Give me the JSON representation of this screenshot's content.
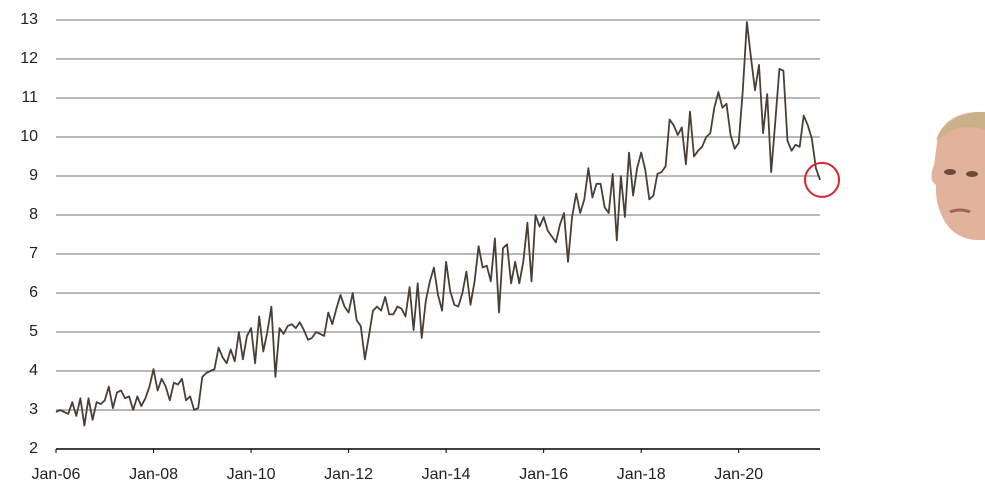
{
  "chart_data": {
    "type": "line",
    "x": [
      "2006-01",
      "2006-02",
      "2006-03",
      "2006-04",
      "2006-05",
      "2006-06",
      "2006-07",
      "2006-08",
      "2006-09",
      "2006-10",
      "2006-11",
      "2006-12",
      "2007-01",
      "2007-02",
      "2007-03",
      "2007-04",
      "2007-05",
      "2007-06",
      "2007-07",
      "2007-08",
      "2007-09",
      "2007-10",
      "2007-11",
      "2007-12",
      "2008-01",
      "2008-02",
      "2008-03",
      "2008-04",
      "2008-05",
      "2008-06",
      "2008-07",
      "2008-08",
      "2008-09",
      "2008-10",
      "2008-11",
      "2008-12",
      "2009-01",
      "2009-02",
      "2009-03",
      "2009-04",
      "2009-05",
      "2009-06",
      "2009-07",
      "2009-08",
      "2009-09",
      "2009-10",
      "2009-11",
      "2009-12",
      "2010-01",
      "2010-02",
      "2010-03",
      "2010-04",
      "2010-05",
      "2010-06",
      "2010-07",
      "2010-08",
      "2010-09",
      "2010-10",
      "2010-11",
      "2010-12",
      "2011-01",
      "2011-02",
      "2011-03",
      "2011-04",
      "2011-05",
      "2011-06",
      "2011-07",
      "2011-08",
      "2011-09",
      "2011-10",
      "2011-11",
      "2011-12",
      "2012-01",
      "2012-02",
      "2012-03",
      "2012-04",
      "2012-05",
      "2012-06",
      "2012-07",
      "2012-08",
      "2012-09",
      "2012-10",
      "2012-11",
      "2012-12",
      "2013-01",
      "2013-02",
      "2013-03",
      "2013-04",
      "2013-05",
      "2013-06",
      "2013-07",
      "2013-08",
      "2013-09",
      "2013-10",
      "2013-11",
      "2013-12",
      "2014-01",
      "2014-02",
      "2014-03",
      "2014-04",
      "2014-05",
      "2014-06",
      "2014-07",
      "2014-08",
      "2014-09",
      "2014-10",
      "2014-11",
      "2014-12",
      "2015-01",
      "2015-02",
      "2015-03",
      "2015-04",
      "2015-05",
      "2015-06",
      "2015-07",
      "2015-08",
      "2015-09",
      "2015-10",
      "2015-11",
      "2015-12",
      "2016-01",
      "2016-02",
      "2016-03",
      "2016-04",
      "2016-05",
      "2016-06",
      "2016-07",
      "2016-08",
      "2016-09",
      "2016-10",
      "2016-11",
      "2016-12",
      "2017-01",
      "2017-02",
      "2017-03",
      "2017-04",
      "2017-05",
      "2017-06",
      "2017-07",
      "2017-08",
      "2017-09",
      "2017-10",
      "2017-11",
      "2017-12",
      "2018-01",
      "2018-02",
      "2018-03",
      "2018-04",
      "2018-05",
      "2018-06",
      "2018-07",
      "2018-08",
      "2018-09",
      "2018-10",
      "2018-11",
      "2018-12",
      "2019-01",
      "2019-02",
      "2019-03",
      "2019-04",
      "2019-05",
      "2019-06",
      "2019-07",
      "2019-08",
      "2019-09",
      "2019-10",
      "2019-11",
      "2019-12",
      "2020-01",
      "2020-02",
      "2020-03",
      "2020-04",
      "2020-05",
      "2020-06",
      "2020-07",
      "2020-08",
      "2020-09",
      "2020-10",
      "2020-11",
      "2020-12",
      "2021-01",
      "2021-02",
      "2021-03",
      "2021-04",
      "2021-05",
      "2021-06",
      "2021-07",
      "2021-08",
      "2021-09"
    ],
    "series": [
      {
        "color": "#4a3f35",
        "values": [
          2.95,
          3.0,
          2.95,
          2.9,
          3.2,
          2.85,
          3.3,
          2.6,
          3.3,
          2.75,
          3.2,
          3.15,
          3.25,
          3.6,
          3.05,
          3.45,
          3.5,
          3.3,
          3.35,
          3.0,
          3.35,
          3.1,
          3.3,
          3.6,
          4.05,
          3.5,
          3.8,
          3.6,
          3.25,
          3.7,
          3.65,
          3.8,
          3.25,
          3.35,
          3.0,
          3.05,
          3.85,
          3.95,
          4.0,
          4.05,
          4.6,
          4.35,
          4.2,
          4.55,
          4.25,
          5.0,
          4.3,
          4.9,
          5.1,
          4.2,
          5.4,
          4.5,
          5.0,
          5.65,
          3.85,
          5.1,
          4.95,
          5.15,
          5.2,
          5.1,
          5.25,
          5.05,
          4.8,
          4.85,
          5.0,
          4.95,
          4.9,
          5.5,
          5.2,
          5.6,
          5.95,
          5.65,
          5.5,
          6.0,
          5.3,
          5.15,
          4.3,
          4.9,
          5.55,
          5.65,
          5.55,
          5.9,
          5.45,
          5.45,
          5.65,
          5.6,
          5.4,
          6.15,
          5.05,
          6.25,
          4.85,
          5.8,
          6.3,
          6.65,
          5.95,
          5.55,
          6.8,
          6.05,
          5.7,
          5.65,
          6.0,
          6.55,
          5.7,
          6.3,
          7.2,
          6.65,
          6.7,
          6.3,
          7.4,
          5.5,
          7.15,
          7.25,
          6.25,
          6.8,
          6.25,
          6.8,
          7.8,
          6.3,
          8.0,
          7.7,
          7.95,
          7.6,
          7.45,
          7.3,
          7.75,
          8.05,
          6.8,
          7.95,
          8.55,
          8.05,
          8.4,
          9.2,
          8.45,
          8.8,
          8.8,
          8.2,
          8.05,
          9.05,
          7.35,
          9.0,
          7.95,
          9.6,
          8.5,
          9.2,
          9.6,
          9.15,
          8.4,
          8.5,
          9.05,
          9.1,
          9.25,
          10.45,
          10.3,
          10.05,
          10.25,
          9.3,
          10.65,
          9.5,
          9.65,
          9.75,
          10.0,
          10.1,
          10.75,
          11.15,
          10.75,
          10.85,
          10.05,
          9.7,
          9.85,
          11.2,
          12.95,
          12.05,
          11.2,
          11.85,
          10.1,
          11.1,
          9.1,
          10.4,
          11.75,
          11.7,
          9.9,
          9.65,
          9.8,
          9.75,
          10.55,
          10.3,
          9.95,
          9.2,
          8.9
        ]
      }
    ],
    "xlim": [
      "2006-01",
      "2021-09"
    ],
    "xticks": [
      {
        "value": "2006-01",
        "label": "Jan-06"
      },
      {
        "value": "2008-01",
        "label": "Jan-08"
      },
      {
        "value": "2010-01",
        "label": "Jan-10"
      },
      {
        "value": "2012-01",
        "label": "Jan-12"
      },
      {
        "value": "2014-01",
        "label": "Jan-14"
      },
      {
        "value": "2016-01",
        "label": "Jan-16"
      },
      {
        "value": "2018-01",
        "label": "Jan-18"
      },
      {
        "value": "2020-01",
        "label": "Jan-20"
      }
    ],
    "ylim": [
      2,
      13
    ],
    "yticks": [
      2,
      3,
      4,
      5,
      6,
      7,
      8,
      9,
      10,
      11,
      12,
      13
    ],
    "grid": true,
    "highlight_color": "#d9262e"
  }
}
